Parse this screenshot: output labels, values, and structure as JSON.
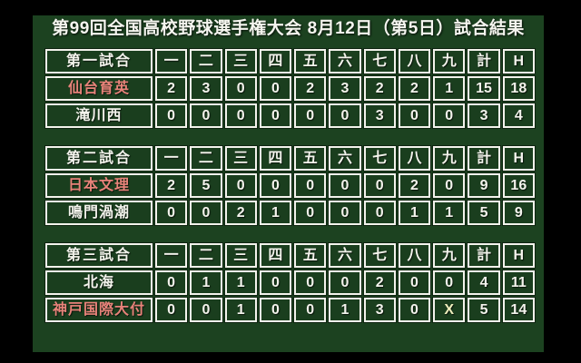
{
  "title": "第99回全国高校野球選手権大会 8月12日（第5日）試合結果",
  "colors": {
    "background": "#000000",
    "panel_green": "#1c4220",
    "cell_green": "#1a3e1e",
    "border_white": "#f3f3ec",
    "winner_name_red": "#e8837a",
    "total_column_yellow": "#f2f2a2"
  },
  "chart_data": [
    {
      "type": "table",
      "title": "第一試合",
      "columns": [
        "一",
        "二",
        "三",
        "四",
        "五",
        "六",
        "七",
        "八",
        "九",
        "計",
        "H"
      ],
      "rows": [
        {
          "name": "仙台育英",
          "winner": true,
          "innings": [
            "2",
            "3",
            "0",
            "0",
            "2",
            "3",
            "2",
            "2",
            "1"
          ],
          "total": "15",
          "hits": "18"
        },
        {
          "name": "滝川西",
          "winner": false,
          "innings": [
            "0",
            "0",
            "0",
            "0",
            "0",
            "0",
            "3",
            "0",
            "0"
          ],
          "total": "3",
          "hits": "4"
        }
      ]
    },
    {
      "type": "table",
      "title": "第二試合",
      "columns": [
        "一",
        "二",
        "三",
        "四",
        "五",
        "六",
        "七",
        "八",
        "九",
        "計",
        "H"
      ],
      "rows": [
        {
          "name": "日本文理",
          "winner": true,
          "innings": [
            "2",
            "5",
            "0",
            "0",
            "0",
            "0",
            "0",
            "2",
            "0"
          ],
          "total": "9",
          "hits": "16"
        },
        {
          "name": "鳴門渦潮",
          "winner": false,
          "innings": [
            "0",
            "0",
            "2",
            "1",
            "0",
            "0",
            "0",
            "1",
            "1"
          ],
          "total": "5",
          "hits": "9"
        }
      ]
    },
    {
      "type": "table",
      "title": "第三試合",
      "columns": [
        "一",
        "二",
        "三",
        "四",
        "五",
        "六",
        "七",
        "八",
        "九",
        "計",
        "H"
      ],
      "rows": [
        {
          "name": "北海",
          "winner": false,
          "innings": [
            "0",
            "1",
            "1",
            "0",
            "0",
            "0",
            "2",
            "0",
            "0"
          ],
          "total": "4",
          "hits": "11"
        },
        {
          "name": "神戸国際大付",
          "winner": true,
          "innings": [
            "0",
            "0",
            "1",
            "0",
            "0",
            "1",
            "3",
            "0",
            "X"
          ],
          "total": "5",
          "hits": "14"
        }
      ]
    }
  ]
}
